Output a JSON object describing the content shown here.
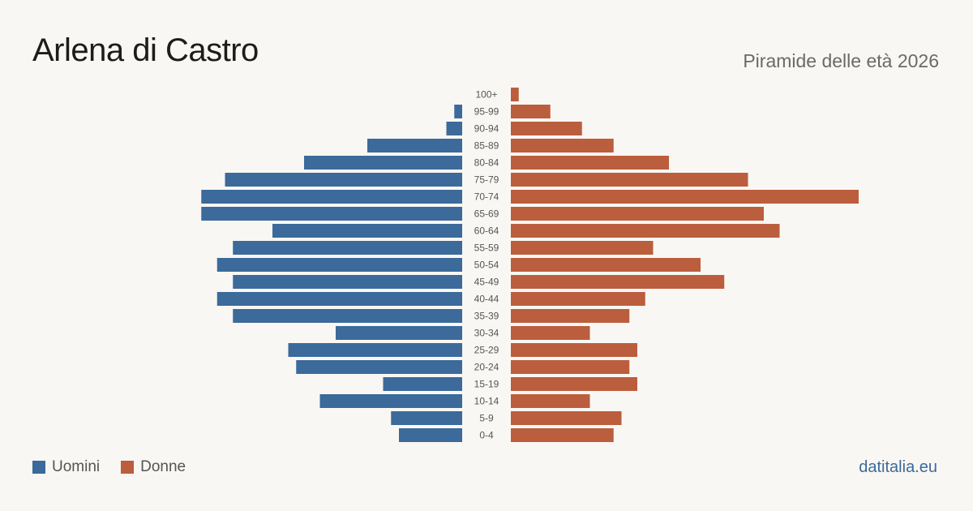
{
  "header": {
    "title": "Arlena di Castro",
    "subtitle": "Piramide delle età 2026"
  },
  "legend": {
    "men_label": "Uomini",
    "women_label": "Donne"
  },
  "source": "datitalia.eu",
  "colors": {
    "men": "#3b6a9b",
    "women": "#bb5e3d",
    "background": "#f9f7f3"
  },
  "chart_data": {
    "type": "bar",
    "orientation": "horizontal-pyramid",
    "categories": [
      "100+",
      "95-99",
      "90-94",
      "85-89",
      "80-84",
      "75-79",
      "70-74",
      "65-69",
      "60-64",
      "55-59",
      "50-54",
      "45-49",
      "40-44",
      "35-39",
      "30-34",
      "25-29",
      "20-24",
      "15-19",
      "10-14",
      "5-9",
      "0-4"
    ],
    "series": [
      {
        "name": "Uomini",
        "values": [
          0,
          1,
          2,
          12,
          20,
          30,
          33,
          33,
          24,
          29,
          31,
          29,
          31,
          29,
          16,
          22,
          21,
          10,
          18,
          9,
          8
        ]
      },
      {
        "name": "Donne",
        "values": [
          1,
          5,
          9,
          13,
          20,
          30,
          44,
          32,
          34,
          18,
          24,
          27,
          17,
          15,
          10,
          16,
          15,
          16,
          10,
          14,
          13
        ]
      }
    ]
  }
}
